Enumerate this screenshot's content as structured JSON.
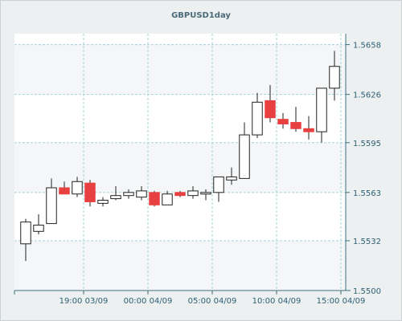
{
  "colors": {
    "background": "#ecf0f1",
    "plot_background": "#ffffff",
    "band_background": "#f4f6f7",
    "grid": "#a7d3d9",
    "axis": "#3f6f82",
    "bullish_fill": "#ffffff",
    "bearish_fill": "#e84040",
    "candle_stroke": "#222222"
  },
  "chart_data": {
    "type": "candlestick",
    "title": "GBPUSD1day",
    "xlabel": "",
    "ylabel": "",
    "ylim": [
      1.55,
      1.5665
    ],
    "y_ticks": [
      1.55,
      1.5532,
      1.5563,
      1.5595,
      1.5626,
      1.5658
    ],
    "y_tick_labels": [
      "1.5500",
      "1.5532",
      "1.5563",
      "1.5595",
      "1.5626",
      "1.5658"
    ],
    "y_axis_position": "right",
    "x_tick_labels": [
      "19:00 03/09",
      "00:00 04/09",
      "05:00 04/09",
      "10:00 04/09",
      "15:00 04/09"
    ],
    "x_tick_candle_index": [
      4.5,
      9.5,
      14.5,
      19.5,
      24.5
    ],
    "grid": true,
    "legend": "none",
    "candles": [
      {
        "open": 1.553,
        "high": 1.5546,
        "low": 1.5519,
        "close": 1.5544
      },
      {
        "open": 1.5538,
        "high": 1.5549,
        "low": 1.5536,
        "close": 1.5542
      },
      {
        "open": 1.5543,
        "high": 1.5572,
        "low": 1.5543,
        "close": 1.5566
      },
      {
        "open": 1.5566,
        "high": 1.557,
        "low": 1.5562,
        "close": 1.5562
      },
      {
        "open": 1.5562,
        "high": 1.5573,
        "low": 1.556,
        "close": 1.557
      },
      {
        "open": 1.5569,
        "high": 1.5571,
        "low": 1.5554,
        "close": 1.5557
      },
      {
        "open": 1.5556,
        "high": 1.556,
        "low": 1.5554,
        "close": 1.5558
      },
      {
        "open": 1.5559,
        "high": 1.5567,
        "low": 1.5558,
        "close": 1.5561
      },
      {
        "open": 1.5561,
        "high": 1.5565,
        "low": 1.5559,
        "close": 1.5563
      },
      {
        "open": 1.556,
        "high": 1.5567,
        "low": 1.5558,
        "close": 1.5564
      },
      {
        "open": 1.5563,
        "high": 1.5564,
        "low": 1.5554,
        "close": 1.5555
      },
      {
        "open": 1.5555,
        "high": 1.5564,
        "low": 1.5555,
        "close": 1.5562
      },
      {
        "open": 1.5563,
        "high": 1.5564,
        "low": 1.556,
        "close": 1.5561
      },
      {
        "open": 1.5561,
        "high": 1.5567,
        "low": 1.5559,
        "close": 1.5564
      },
      {
        "open": 1.5562,
        "high": 1.5565,
        "low": 1.5558,
        "close": 1.5563
      },
      {
        "open": 1.5563,
        "high": 1.5573,
        "low": 1.5557,
        "close": 1.5573
      },
      {
        "open": 1.5571,
        "high": 1.5579,
        "low": 1.5568,
        "close": 1.5573
      },
      {
        "open": 1.5572,
        "high": 1.5608,
        "low": 1.5572,
        "close": 1.56
      },
      {
        "open": 1.56,
        "high": 1.5627,
        "low": 1.5598,
        "close": 1.5621
      },
      {
        "open": 1.5622,
        "high": 1.5632,
        "low": 1.5608,
        "close": 1.5611
      },
      {
        "open": 1.561,
        "high": 1.5614,
        "low": 1.5604,
        "close": 1.5607
      },
      {
        "open": 1.5608,
        "high": 1.5618,
        "low": 1.5602,
        "close": 1.5604
      },
      {
        "open": 1.5604,
        "high": 1.5612,
        "low": 1.5597,
        "close": 1.5602
      },
      {
        "open": 1.5602,
        "high": 1.5629,
        "low": 1.5595,
        "close": 1.563
      },
      {
        "open": 1.563,
        "high": 1.5654,
        "low": 1.5622,
        "close": 1.5644
      }
    ]
  }
}
